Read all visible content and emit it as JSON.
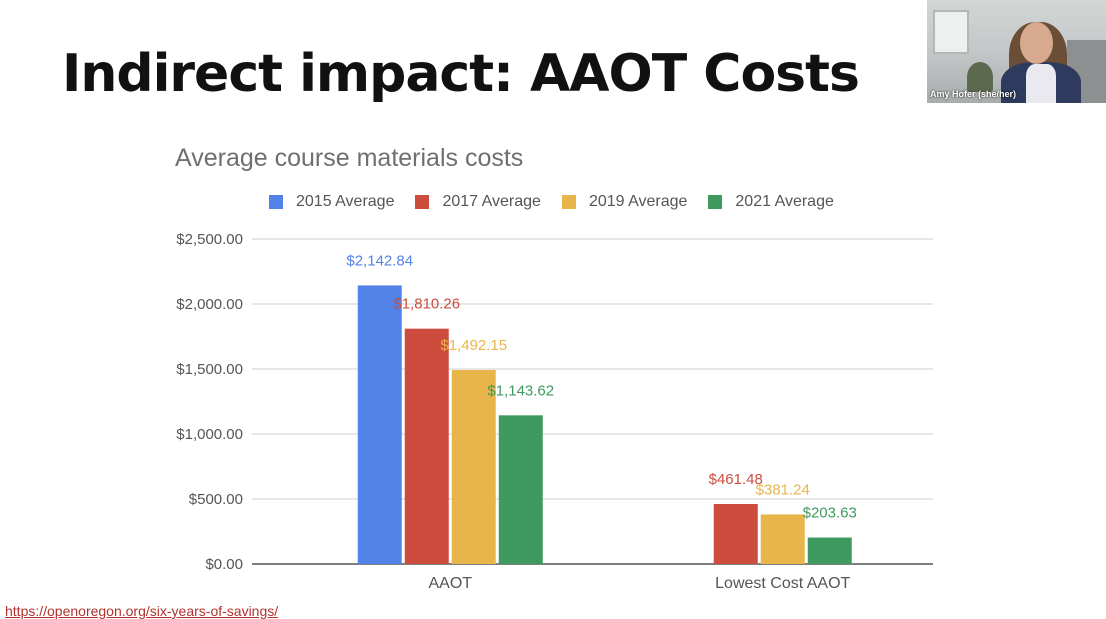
{
  "slide": {
    "title": "Indirect impact: AAOT Costs",
    "source_link": "https://openoregon.org/six-years-of-savings/"
  },
  "video_tile": {
    "participant_name": "Amy Hofer (she/her)"
  },
  "chart_data": {
    "type": "bar",
    "title": "Average course materials costs",
    "xlabel": "",
    "ylabel": "",
    "categories": [
      "AAOT",
      "Lowest Cost AAOT"
    ],
    "ylim": [
      0,
      2500
    ],
    "yticks": [
      0,
      500,
      1000,
      1500,
      2000,
      2500
    ],
    "ytick_labels": [
      "$0.00",
      "$500.00",
      "$1,000.00",
      "$1,500.00",
      "$2,000.00",
      "$2,500.00"
    ],
    "grid": true,
    "legend_position": "top",
    "series": [
      {
        "name": "2015 Average",
        "color": "#5383e8",
        "values": [
          2142.84,
          null
        ],
        "labels": [
          "$2,142.84",
          ""
        ]
      },
      {
        "name": "2017 Average",
        "color": "#cc4c3e",
        "values": [
          1810.26,
          461.48
        ],
        "labels": [
          "$1,810.26",
          "$461.48"
        ]
      },
      {
        "name": "2019 Average",
        "color": "#e8b54a",
        "values": [
          1492.15,
          381.24
        ],
        "labels": [
          "$1,492.15",
          "$381.24"
        ]
      },
      {
        "name": "2021 Average",
        "color": "#3e9a5f",
        "values": [
          1143.62,
          203.63
        ],
        "labels": [
          "$1,143.62",
          "$203.63"
        ]
      }
    ]
  }
}
